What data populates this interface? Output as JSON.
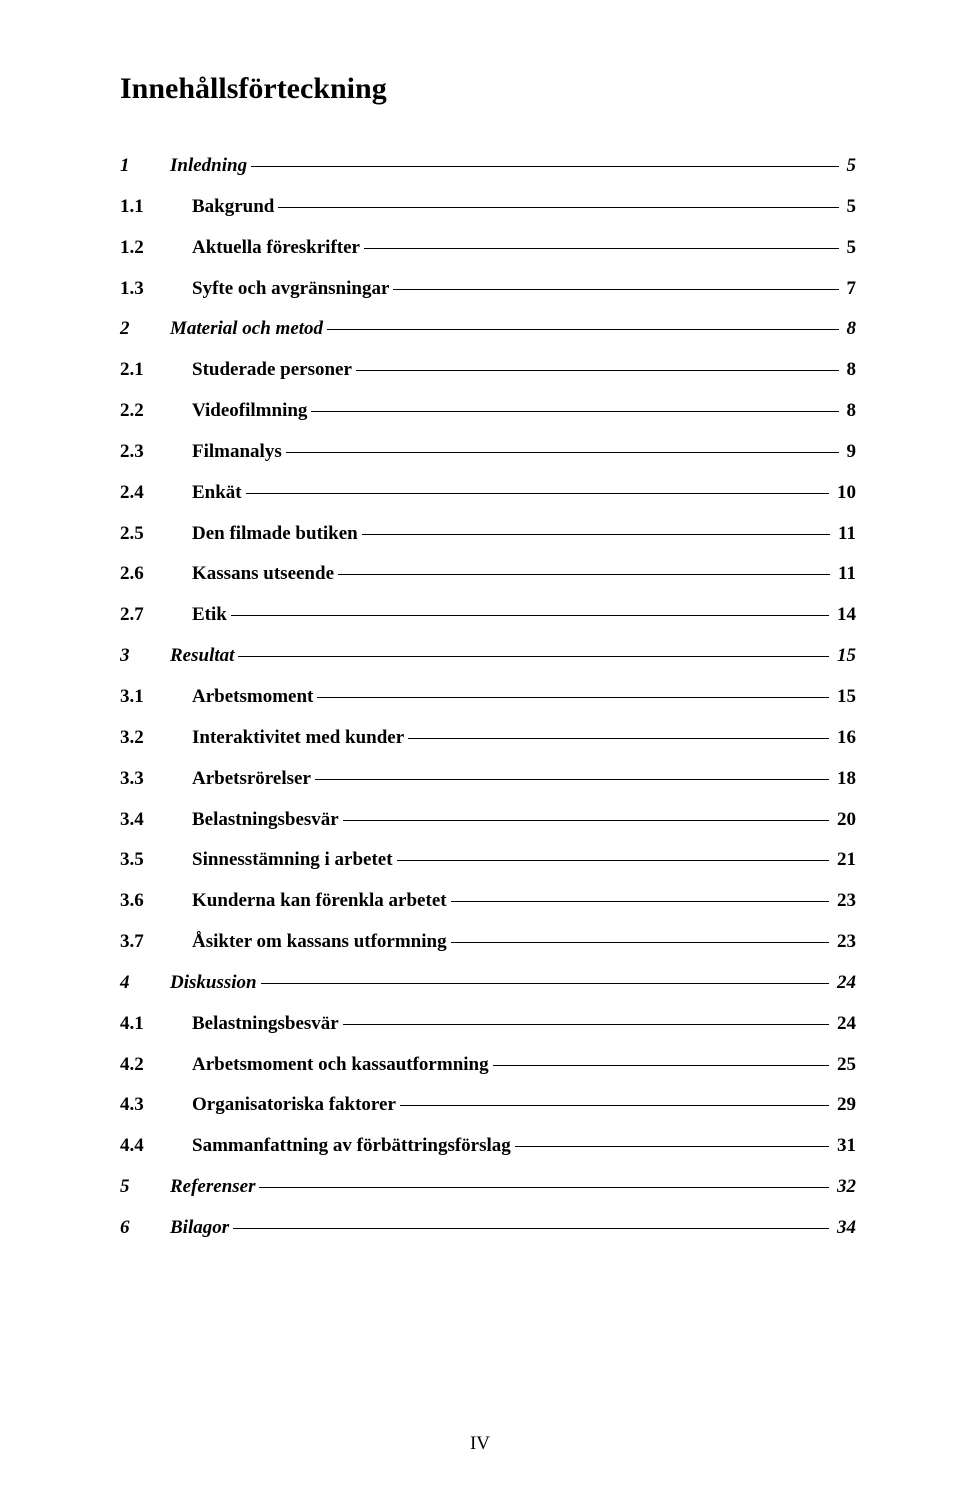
{
  "title": "Innehållsförteckning",
  "entries": [
    {
      "level": 1,
      "num": "1",
      "label": "Inledning",
      "page": "5"
    },
    {
      "level": 2,
      "num": "1.1",
      "label": "Bakgrund",
      "page": "5"
    },
    {
      "level": 2,
      "num": "1.2",
      "label": "Aktuella föreskrifter",
      "page": "5"
    },
    {
      "level": 2,
      "num": "1.3",
      "label": "Syfte och avgränsningar",
      "page": "7"
    },
    {
      "level": 1,
      "num": "2",
      "label": "Material och metod",
      "page": "8"
    },
    {
      "level": 2,
      "num": "2.1",
      "label": "Studerade personer",
      "page": "8"
    },
    {
      "level": 2,
      "num": "2.2",
      "label": "Videofilmning",
      "page": "8"
    },
    {
      "level": 2,
      "num": "2.3",
      "label": "Filmanalys",
      "page": "9"
    },
    {
      "level": 2,
      "num": "2.4",
      "label": "Enkät",
      "page": "10"
    },
    {
      "level": 2,
      "num": "2.5",
      "label": "Den filmade butiken",
      "page": "11"
    },
    {
      "level": 2,
      "num": "2.6",
      "label": "Kassans utseende",
      "page": "11"
    },
    {
      "level": 2,
      "num": "2.7",
      "label": "Etik",
      "page": "14"
    },
    {
      "level": 1,
      "num": "3",
      "label": "Resultat",
      "page": "15"
    },
    {
      "level": 2,
      "num": "3.1",
      "label": "Arbetsmoment",
      "page": "15"
    },
    {
      "level": 2,
      "num": "3.2",
      "label": "Interaktivitet med kunder",
      "page": "16"
    },
    {
      "level": 2,
      "num": "3.3",
      "label": "Arbetsrörelser",
      "page": "18"
    },
    {
      "level": 2,
      "num": "3.4",
      "label": "Belastningsbesvär",
      "page": "20"
    },
    {
      "level": 2,
      "num": "3.5",
      "label": "Sinnesstämning i arbetet",
      "page": "21"
    },
    {
      "level": 2,
      "num": "3.6",
      "label": "Kunderna kan förenkla arbetet",
      "page": "23"
    },
    {
      "level": 2,
      "num": "3.7",
      "label": "Åsikter om kassans utformning",
      "page": "23"
    },
    {
      "level": 1,
      "num": "4",
      "label": "Diskussion",
      "page": "24"
    },
    {
      "level": 2,
      "num": "4.1",
      "label": "Belastningsbesvär",
      "page": "24"
    },
    {
      "level": 2,
      "num": "4.2",
      "label": "Arbetsmoment och kassautformning",
      "page": "25"
    },
    {
      "level": 2,
      "num": "4.3",
      "label": "Organisatoriska faktorer",
      "page": "29"
    },
    {
      "level": 2,
      "num": "4.4",
      "label": "Sammanfattning av förbättringsförslag",
      "page": "31"
    },
    {
      "level": 1,
      "num": "5",
      "label": "Referenser",
      "page": "32"
    },
    {
      "level": 1,
      "num": "6",
      "label": "Bilagor",
      "page": "34"
    }
  ],
  "footer": "IV"
}
